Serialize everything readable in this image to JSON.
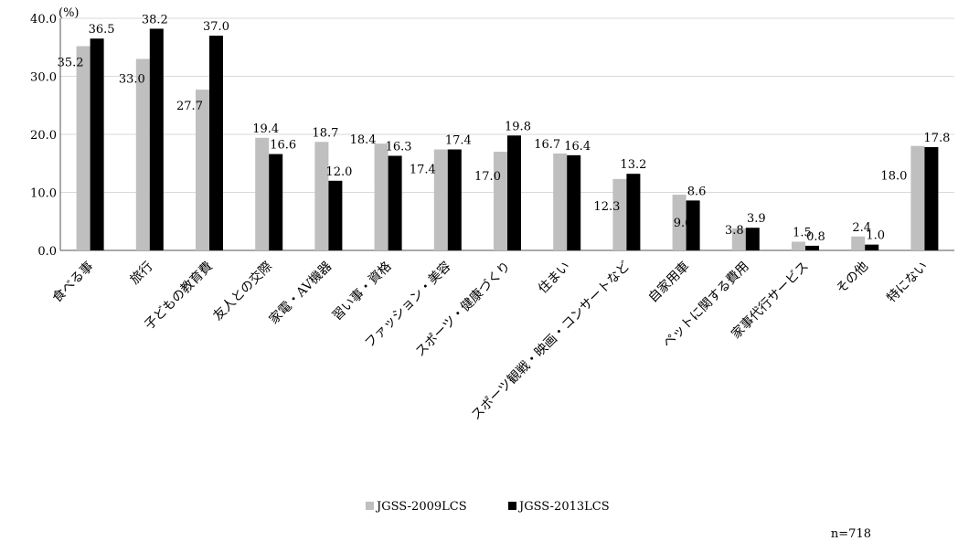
{
  "chart_data": {
    "type": "bar",
    "ylabel": "(%)",
    "ylim": [
      0,
      40
    ],
    "yticks": [
      "0.0",
      "10.0",
      "20.0",
      "30.0",
      "40.0"
    ],
    "categories": [
      "食べる事",
      "旅行",
      "子どもの教育費",
      "友人との交際",
      "家電・AV機器",
      "習い事・資格",
      "ファッション・美容",
      "スポーツ・健康づくり",
      "住まい",
      "スポーツ観戦・映画・コンサートなど",
      "自家用車",
      "ペットに関する費用",
      "家事代行サービス",
      "その他",
      "特にない"
    ],
    "series": [
      {
        "name": "JGSS-2009LCS",
        "color": "#bfbfbf",
        "values": [
          35.2,
          33.0,
          27.7,
          19.4,
          18.7,
          18.4,
          17.4,
          17.0,
          16.7,
          12.3,
          9.6,
          3.8,
          1.5,
          2.4,
          18.0
        ]
      },
      {
        "name": "JGSS-2013LCS",
        "color": "#000000",
        "values": [
          36.5,
          38.2,
          37.0,
          16.6,
          12.0,
          16.3,
          17.4,
          19.8,
          16.4,
          13.2,
          8.6,
          3.9,
          0.8,
          1.0,
          17.8
        ]
      }
    ],
    "legend": "bottom",
    "note": "n=718"
  }
}
